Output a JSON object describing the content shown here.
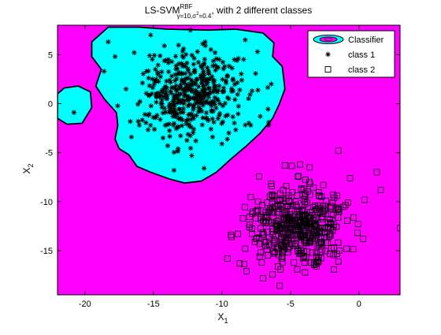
{
  "chart_data": {
    "type": "scatter",
    "title": {
      "prefix": "LS-SVM",
      "superscript": "RBF",
      "subscript": "γ=10,σ",
      "subscript_sup": "2",
      "subscript_tail": "=0.4",
      "suffix": ", with 2 different classes"
    },
    "xlabel": {
      "main": "X",
      "sub": "1"
    },
    "ylabel": {
      "main": "X",
      "sub": "2"
    },
    "xlim": [
      -22,
      3
    ],
    "ylim": [
      -19.5,
      8
    ],
    "xticks": [
      -20,
      -15,
      -10,
      -5,
      0
    ],
    "yticks": [
      5,
      0,
      -5,
      -10,
      -15
    ],
    "grid": false,
    "legend": {
      "placement": "top-right",
      "entries": [
        "Classifier",
        "class 1",
        "class 2"
      ]
    },
    "colors": {
      "background_region": "#ff00ff",
      "class1_region": "#00ffff",
      "boundary": "#000000",
      "markers": "#000000"
    },
    "classifier_regions": [
      {
        "name": "class 1 region (main)",
        "boundary": [
          [
            -18.3,
            7.8
          ],
          [
            -16,
            7.8
          ],
          [
            -14,
            7.6
          ],
          [
            -11,
            7.5
          ],
          [
            -9,
            7.6
          ],
          [
            -7,
            7.2
          ],
          [
            -6.2,
            6.2
          ],
          [
            -6.3,
            4.8
          ],
          [
            -5.6,
            3.8
          ],
          [
            -5.4,
            1.5
          ],
          [
            -5.8,
            0
          ],
          [
            -6.3,
            -1.5
          ],
          [
            -7.2,
            -3
          ],
          [
            -8.2,
            -4.3
          ],
          [
            -9.3,
            -5.6
          ],
          [
            -10.4,
            -7
          ],
          [
            -11.5,
            -7.9
          ],
          [
            -12.7,
            -8.1
          ],
          [
            -13.8,
            -7.7
          ],
          [
            -15.2,
            -7
          ],
          [
            -16.2,
            -6.4
          ],
          [
            -16.8,
            -5.2
          ],
          [
            -17.5,
            -4.6
          ],
          [
            -17.8,
            -3.6
          ],
          [
            -17.6,
            -2.2
          ],
          [
            -17.7,
            -0.9
          ],
          [
            -18.6,
            0.5
          ],
          [
            -19.2,
            1.8
          ],
          [
            -18.8,
            3.5
          ],
          [
            -19.5,
            4.8
          ],
          [
            -19.5,
            6.3
          ]
        ]
      },
      {
        "name": "class 1 region (small)",
        "boundary": [
          [
            -21.5,
            1.6
          ],
          [
            -20.5,
            1.8
          ],
          [
            -19.6,
            1.2
          ],
          [
            -19.5,
            -0.4
          ],
          [
            -20.2,
            -2
          ],
          [
            -21.3,
            -2.1
          ],
          [
            -22,
            -1.5
          ],
          [
            -22,
            1
          ]
        ]
      }
    ],
    "class1": {
      "marker": "star",
      "points": [
        [
          -20.8,
          -0.9
        ],
        [
          -18.3,
          6.3
        ],
        [
          -17.8,
          4.8
        ],
        [
          -18.6,
          3.3
        ],
        [
          -17,
          1.5
        ],
        [
          -16.6,
          -3.4
        ],
        [
          -13.5,
          -6.8
        ],
        [
          -12.2,
          -5.3
        ],
        [
          -11.3,
          -6.6
        ],
        [
          -10,
          -4.1
        ],
        [
          -9.5,
          -3
        ],
        [
          -7.2,
          -1.3
        ],
        [
          -6.4,
          2
        ],
        [
          -7.4,
          5.3
        ],
        [
          -8.3,
          6.5
        ],
        [
          -12.3,
          7.5
        ],
        [
          -15.2,
          7
        ],
        [
          -16.4,
          5.2
        ],
        [
          -15.5,
          3.3
        ],
        [
          -14.8,
          2.5
        ],
        [
          -15.3,
          0.8
        ],
        [
          -15,
          -1.4
        ],
        [
          -14.3,
          -3.5
        ],
        [
          -13.2,
          -4.6
        ],
        [
          -11.9,
          -3.8
        ],
        [
          -10.8,
          -2.6
        ],
        [
          -10.2,
          -1.2
        ],
        [
          -9.5,
          0.5
        ],
        [
          -9.2,
          2.4
        ],
        [
          -9.8,
          3.8
        ],
        [
          -10.5,
          5.2
        ],
        [
          -12.8,
          5.6
        ],
        [
          -13.9,
          4.5
        ],
        [
          -13.2,
          3
        ],
        [
          -12.5,
          1.8
        ],
        [
          -11.6,
          0.7
        ],
        [
          -12.1,
          -0.6
        ],
        [
          -13.4,
          -1.3
        ],
        [
          -11,
          3.1
        ],
        [
          -10.6,
          1.2
        ],
        [
          -14.6,
          1.1
        ],
        [
          -13.8,
          -0.2
        ],
        [
          -12.9,
          0.4
        ],
        [
          -11.8,
          2.5
        ],
        [
          -12.4,
          -2.1
        ],
        [
          -11.1,
          -1.5
        ],
        [
          -14.2,
          5.9
        ],
        [
          -11.4,
          6.1
        ],
        [
          -8.7,
          1.4
        ],
        [
          -16.1,
          -1.8
        ],
        [
          -15.8,
          2.1
        ],
        [
          -7.9,
          -2.2
        ]
      ],
      "cluster": {
        "center": [
          -12.2,
          1.0
        ],
        "spread": [
          1.8,
          2.1
        ],
        "count": 420,
        "seed": 7
      }
    },
    "class2": {
      "marker": "square",
      "points": [
        [
          -9.3,
          -13.6
        ],
        [
          -9.6,
          -15.8
        ],
        [
          -8.7,
          -16.3
        ],
        [
          -8.2,
          -17.1
        ],
        [
          -7,
          -17.8
        ],
        [
          -6.8,
          -11.1
        ],
        [
          -5.4,
          -6.3
        ],
        [
          -4.3,
          -6.2
        ],
        [
          -4.4,
          -7.4
        ],
        [
          -3.6,
          -6.5
        ],
        [
          -1.5,
          -4.8
        ],
        [
          1.3,
          -7
        ],
        [
          1.6,
          -8.8
        ],
        [
          0.4,
          -9.8
        ],
        [
          -0.8,
          -10.1
        ],
        [
          3,
          -12.7
        ],
        [
          -0.9,
          -14.8
        ],
        [
          -1.5,
          -16.1
        ],
        [
          -3.1,
          -16.6
        ],
        [
          -4.5,
          -16.9
        ],
        [
          -5.9,
          -16.6
        ],
        [
          -7.1,
          -16.2
        ],
        [
          -8.3,
          -14.8
        ],
        [
          -8,
          -12.6
        ],
        [
          -7.5,
          -11
        ],
        [
          -6.5,
          -9.5
        ],
        [
          -5.3,
          -8.4
        ],
        [
          -4.2,
          -8.8
        ],
        [
          -2.6,
          -8.3
        ],
        [
          -1.8,
          -9.6
        ],
        [
          -0.4,
          -11.6
        ],
        [
          0.3,
          -13.8
        ],
        [
          -5.1,
          -9.9
        ],
        [
          -3,
          -10.4
        ],
        [
          -2.1,
          -12.2
        ],
        [
          -4,
          -14
        ],
        [
          -6.3,
          -13.3
        ],
        [
          -7.6,
          -14.1
        ],
        [
          -3.4,
          -15.2
        ],
        [
          -5.6,
          -15.6
        ]
      ],
      "cluster": {
        "center": [
          -4.4,
          -12.5
        ],
        "spread": [
          1.7,
          1.85
        ],
        "count": 440,
        "seed": 13
      }
    }
  }
}
